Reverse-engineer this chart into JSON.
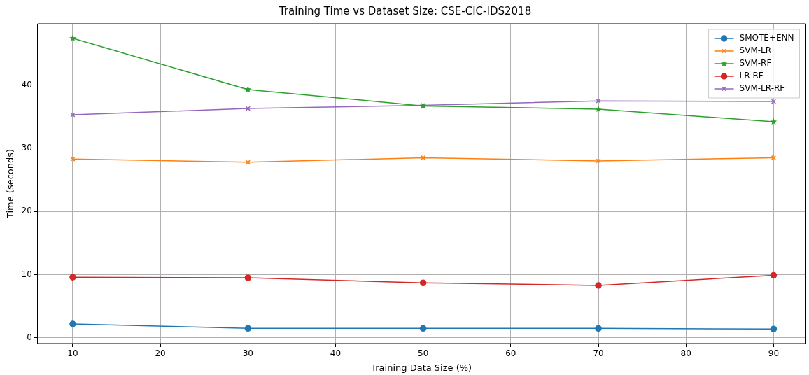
{
  "chart_data": {
    "type": "line",
    "title": "Training Time vs Dataset Size: CSE-CIC-IDS2018",
    "xlabel": "Training Data Size (%)",
    "ylabel": "Time (seconds)",
    "x": [
      10,
      30,
      50,
      70,
      90
    ],
    "series": [
      {
        "name": "SMOTE+ENN",
        "color": "#1f77b4",
        "marker": "circle",
        "values": [
          2.2,
          1.5,
          1.5,
          1.5,
          1.4
        ]
      },
      {
        "name": "SVM-LR",
        "color": "#ff7f0e",
        "marker": "cross",
        "values": [
          28.3,
          27.8,
          28.5,
          28.0,
          28.5
        ]
      },
      {
        "name": "SVM-RF",
        "color": "#2ca02c",
        "marker": "star",
        "values": [
          47.4,
          39.3,
          36.7,
          36.2,
          34.2
        ]
      },
      {
        "name": "LR-RF",
        "color": "#d62728",
        "marker": "circle",
        "values": [
          9.6,
          9.5,
          8.7,
          8.3,
          9.9
        ]
      },
      {
        "name": "SVM-LR-RF",
        "color": "#9467bd",
        "marker": "cross",
        "values": [
          35.3,
          36.3,
          36.8,
          37.5,
          37.4
        ]
      }
    ],
    "xlim": [
      6,
      93.6
    ],
    "xticks": [
      10,
      20,
      30,
      40,
      50,
      60,
      70,
      80,
      90
    ],
    "ylim": [
      -0.9,
      49.7
    ],
    "yticks": [
      0,
      10,
      20,
      30,
      40
    ],
    "grid": true,
    "legend": "top right"
  }
}
